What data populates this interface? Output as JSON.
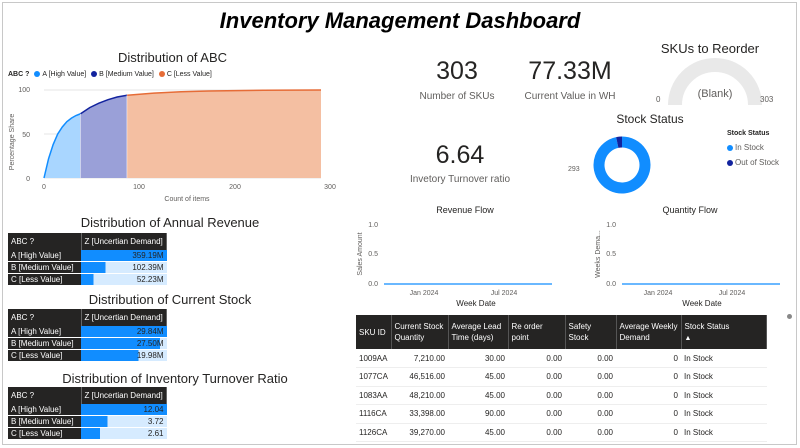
{
  "title": "Inventory Management Dashboard",
  "abc_chart": {
    "title": "Distribution of ABC",
    "legend_title": "ABC ?",
    "legend": [
      {
        "label": "A [High Value]",
        "color": "#118dff"
      },
      {
        "label": "B [Medium Value]",
        "color": "#12239e"
      },
      {
        "label": "C [Less Value]",
        "color": "#e66c37"
      }
    ],
    "ylabel": "Percentage Share",
    "xlabel": "Count of items",
    "y_ticks": [
      "0",
      "50",
      "100"
    ],
    "x_ticks": [
      "0",
      "100",
      "200",
      "300"
    ]
  },
  "chart_data": [
    {
      "type": "area",
      "title": "Distribution of ABC",
      "xlabel": "Count of items",
      "ylabel": "Percentage Share",
      "xlim": [
        0,
        303
      ],
      "ylim": [
        0,
        100
      ],
      "series": [
        {
          "name": "A [High Value]",
          "x": [
            0,
            5,
            10,
            15,
            20,
            25,
            30,
            35,
            40
          ],
          "y": [
            0,
            22,
            38,
            50,
            58,
            64,
            68,
            71,
            73
          ]
        },
        {
          "name": "B [Medium Value]",
          "x": [
            40,
            50,
            60,
            70,
            80,
            91
          ],
          "y": [
            73,
            80,
            85,
            89,
            92,
            94
          ]
        },
        {
          "name": "C [Less Value]",
          "x": [
            91,
            120,
            150,
            180,
            210,
            240,
            270,
            303
          ],
          "y": [
            94,
            96.5,
            98,
            98.8,
            99.3,
            99.7,
            99.9,
            100
          ]
        }
      ]
    },
    {
      "type": "line",
      "title": "Revenue Flow",
      "xlabel": "Week Date",
      "ylabel": "Sales Amount",
      "ylim": [
        0,
        1
      ],
      "y_ticks": [
        "0.0",
        "0.5",
        "1.0"
      ],
      "x_ticks": [
        "Jan 2024",
        "Jul 2024"
      ],
      "series": [
        {
          "name": "Sales Amount",
          "values": [
            0,
            0
          ]
        }
      ]
    },
    {
      "type": "line",
      "title": "Quantity Flow",
      "xlabel": "Week Date",
      "ylabel": "Weeks Dema...",
      "ylim": [
        0,
        1
      ],
      "y_ticks": [
        "0.0",
        "0.5",
        "1.0"
      ],
      "x_ticks": [
        "Jan 2024",
        "Jul 2024"
      ],
      "series": [
        {
          "name": "Weeks Demand",
          "values": [
            0,
            0
          ]
        }
      ]
    },
    {
      "type": "pie",
      "title": "Stock Status",
      "categories": [
        "In Stock",
        "Out of Stock"
      ],
      "values": [
        293,
        10
      ]
    }
  ],
  "kpis": {
    "skus": {
      "value": "303",
      "label": "Number of SKUs"
    },
    "current_value": {
      "value": "77.33M",
      "label": "Current Value in WH"
    },
    "turnover": {
      "value": "6.64",
      "label": "Invetory Turnover ratio"
    }
  },
  "gauge": {
    "title": "SKUs to Reorder",
    "value": "(Blank)",
    "min": "0",
    "max": "303"
  },
  "stock_status": {
    "title": "Stock Status",
    "legend_title": "Stock Status",
    "items": [
      {
        "label": "In Stock",
        "color": "#118dff"
      },
      {
        "label": "Out of Stock",
        "color": "#12239e"
      }
    ],
    "data_label": "293"
  },
  "revenue_flow": {
    "title": "Revenue Flow",
    "ylabel": "Sales Amount",
    "xlabel": "Week Date"
  },
  "quantity_flow": {
    "title": "Quantity Flow",
    "ylabel": "Weeks Dema...",
    "xlabel": "Week Date"
  },
  "annual_revenue": {
    "title": "Distribution of Annual Revenue",
    "col1": "ABC ?",
    "col2": "Z [Uncertian Demand]",
    "rows": [
      {
        "label": "A [High Value]",
        "value": "359.19M",
        "pct": 100
      },
      {
        "label": "B [Medium Value]",
        "value": "102.39M",
        "pct": 28.5
      },
      {
        "label": "C [Less Value]",
        "value": "52.23M",
        "pct": 14.5
      }
    ]
  },
  "current_stock": {
    "title": "Distribution of Current Stock",
    "col1": "ABC ?",
    "col2": "Z [Uncertian Demand]",
    "rows": [
      {
        "label": "A [High Value]",
        "value": "29.84M",
        "pct": 100
      },
      {
        "label": "B [Medium Value]",
        "value": "27.50M",
        "pct": 92
      },
      {
        "label": "C [Less Value]",
        "value": "19.98M",
        "pct": 67
      }
    ]
  },
  "turnover_ratio": {
    "title": "Distribution of Inventory Turnover Ratio",
    "col1": "ABC ?",
    "col2": "Z [Uncertian Demand]",
    "rows": [
      {
        "label": "A [High Value]",
        "value": "12.04",
        "pct": 100
      },
      {
        "label": "B [Medium Value]",
        "value": "3.72",
        "pct": 31
      },
      {
        "label": "C [Less Value]",
        "value": "2.61",
        "pct": 22
      }
    ]
  },
  "sku_table": {
    "headers": [
      "SKU ID",
      "Current Stock Quantity",
      "Average Lead Time (days)",
      "Re order point",
      "Safety Stock",
      "Average Weekly Demand",
      "Stock Status"
    ],
    "sort_indicator": "▲",
    "rows": [
      [
        "1009AA",
        "7,210.00",
        "30.00",
        "0.00",
        "0.00",
        "0",
        "In Stock"
      ],
      [
        "1077CA",
        "46,516.00",
        "45.00",
        "0.00",
        "0.00",
        "0",
        "In Stock"
      ],
      [
        "1083AA",
        "48,210.00",
        "45.00",
        "0.00",
        "0.00",
        "0",
        "In Stock"
      ],
      [
        "1116CA",
        "33,398.00",
        "90.00",
        "0.00",
        "0.00",
        "0",
        "In Stock"
      ],
      [
        "1126CA",
        "39,270.00",
        "45.00",
        "0.00",
        "0.00",
        "0",
        "In Stock"
      ]
    ]
  }
}
